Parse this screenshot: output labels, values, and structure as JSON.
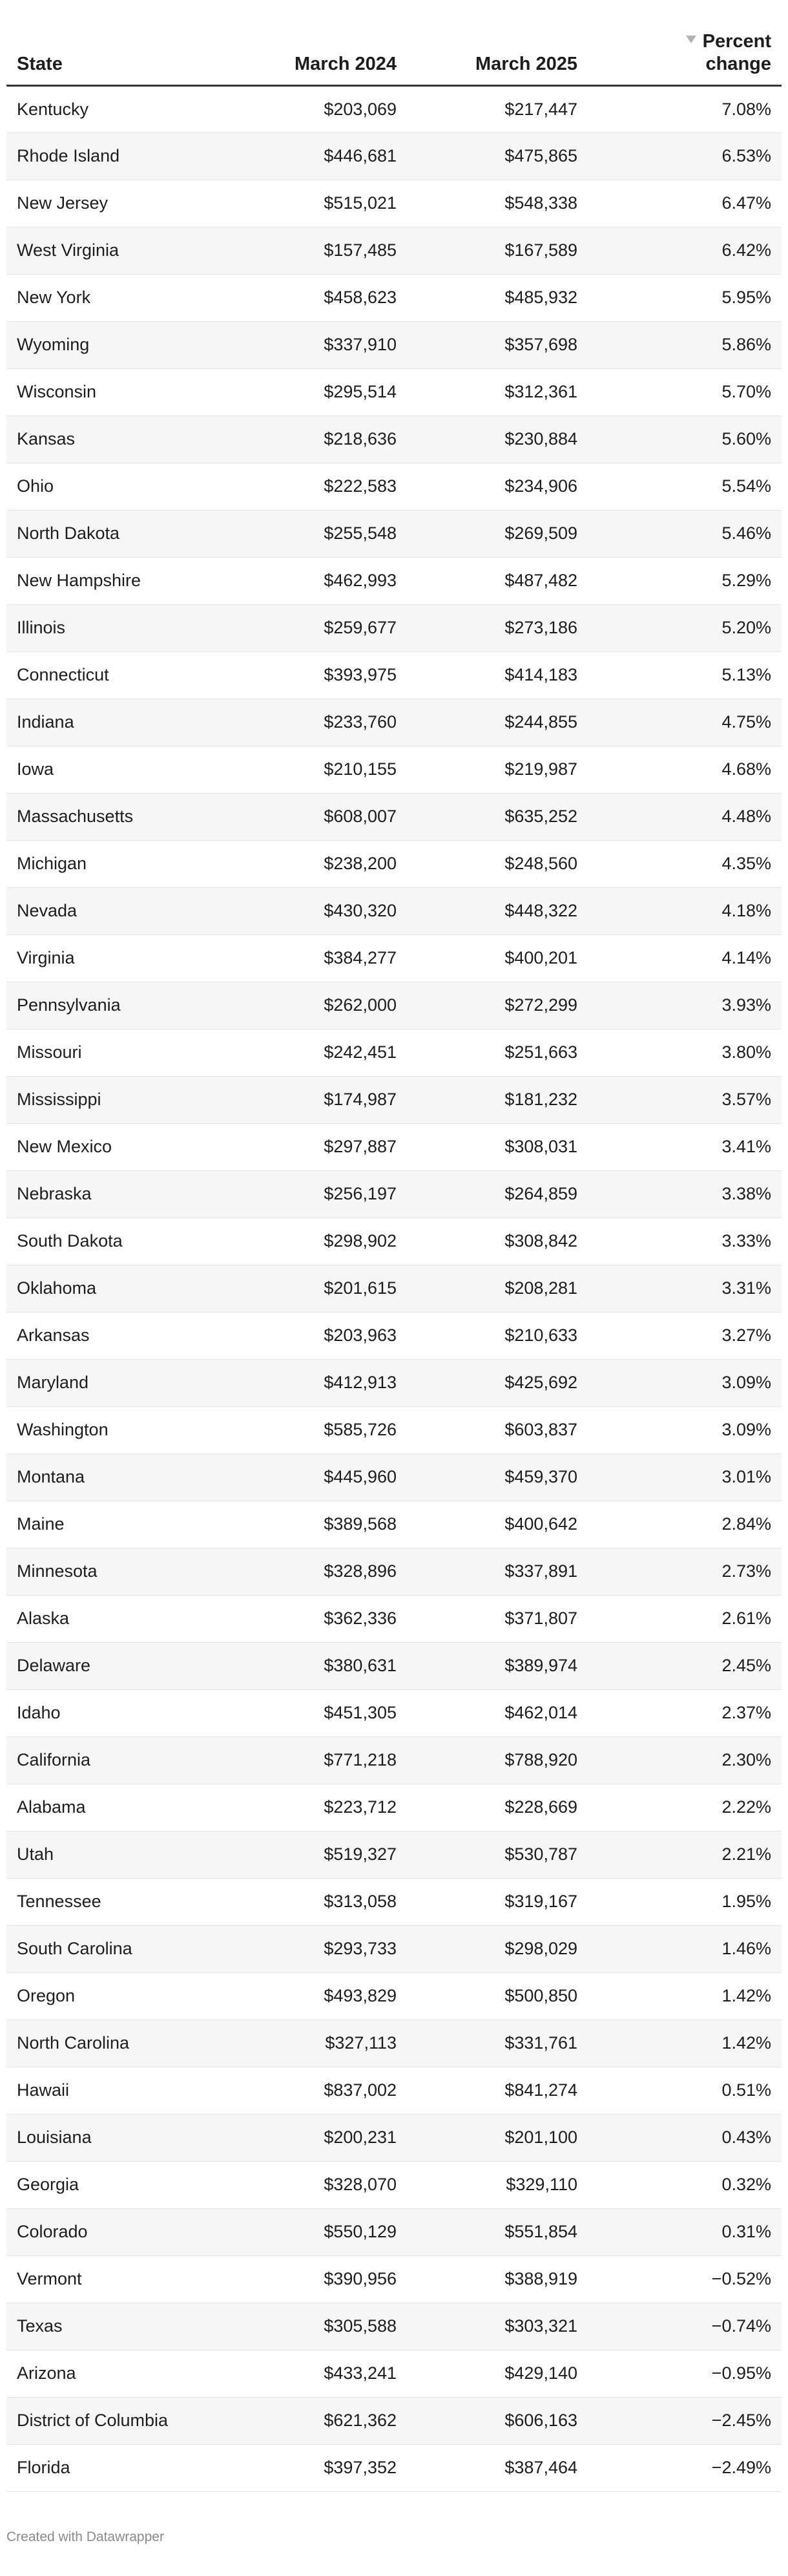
{
  "chart_data": {
    "type": "table",
    "columns": [
      "State",
      "March 2024",
      "March 2025",
      "Percent change"
    ],
    "sorted_by": "Percent change",
    "sort_direction": "descending",
    "rows": [
      [
        "Kentucky",
        "$203,069",
        "$217,447",
        "7.08%"
      ],
      [
        "Rhode Island",
        "$446,681",
        "$475,865",
        "6.53%"
      ],
      [
        "New Jersey",
        "$515,021",
        "$548,338",
        "6.47%"
      ],
      [
        "West Virginia",
        "$157,485",
        "$167,589",
        "6.42%"
      ],
      [
        "New York",
        "$458,623",
        "$485,932",
        "5.95%"
      ],
      [
        "Wyoming",
        "$337,910",
        "$357,698",
        "5.86%"
      ],
      [
        "Wisconsin",
        "$295,514",
        "$312,361",
        "5.70%"
      ],
      [
        "Kansas",
        "$218,636",
        "$230,884",
        "5.60%"
      ],
      [
        "Ohio",
        "$222,583",
        "$234,906",
        "5.54%"
      ],
      [
        "North Dakota",
        "$255,548",
        "$269,509",
        "5.46%"
      ],
      [
        "New Hampshire",
        "$462,993",
        "$487,482",
        "5.29%"
      ],
      [
        "Illinois",
        "$259,677",
        "$273,186",
        "5.20%"
      ],
      [
        "Connecticut",
        "$393,975",
        "$414,183",
        "5.13%"
      ],
      [
        "Indiana",
        "$233,760",
        "$244,855",
        "4.75%"
      ],
      [
        "Iowa",
        "$210,155",
        "$219,987",
        "4.68%"
      ],
      [
        "Massachusetts",
        "$608,007",
        "$635,252",
        "4.48%"
      ],
      [
        "Michigan",
        "$238,200",
        "$248,560",
        "4.35%"
      ],
      [
        "Nevada",
        "$430,320",
        "$448,322",
        "4.18%"
      ],
      [
        "Virginia",
        "$384,277",
        "$400,201",
        "4.14%"
      ],
      [
        "Pennsylvania",
        "$262,000",
        "$272,299",
        "3.93%"
      ],
      [
        "Missouri",
        "$242,451",
        "$251,663",
        "3.80%"
      ],
      [
        "Mississippi",
        "$174,987",
        "$181,232",
        "3.57%"
      ],
      [
        "New Mexico",
        "$297,887",
        "$308,031",
        "3.41%"
      ],
      [
        "Nebraska",
        "$256,197",
        "$264,859",
        "3.38%"
      ],
      [
        "South Dakota",
        "$298,902",
        "$308,842",
        "3.33%"
      ],
      [
        "Oklahoma",
        "$201,615",
        "$208,281",
        "3.31%"
      ],
      [
        "Arkansas",
        "$203,963",
        "$210,633",
        "3.27%"
      ],
      [
        "Maryland",
        "$412,913",
        "$425,692",
        "3.09%"
      ],
      [
        "Washington",
        "$585,726",
        "$603,837",
        "3.09%"
      ],
      [
        "Montana",
        "$445,960",
        "$459,370",
        "3.01%"
      ],
      [
        "Maine",
        "$389,568",
        "$400,642",
        "2.84%"
      ],
      [
        "Minnesota",
        "$328,896",
        "$337,891",
        "2.73%"
      ],
      [
        "Alaska",
        "$362,336",
        "$371,807",
        "2.61%"
      ],
      [
        "Delaware",
        "$380,631",
        "$389,974",
        "2.45%"
      ],
      [
        "Idaho",
        "$451,305",
        "$462,014",
        "2.37%"
      ],
      [
        "California",
        "$771,218",
        "$788,920",
        "2.30%"
      ],
      [
        "Alabama",
        "$223,712",
        "$228,669",
        "2.22%"
      ],
      [
        "Utah",
        "$519,327",
        "$530,787",
        "2.21%"
      ],
      [
        "Tennessee",
        "$313,058",
        "$319,167",
        "1.95%"
      ],
      [
        "South Carolina",
        "$293,733",
        "$298,029",
        "1.46%"
      ],
      [
        "Oregon",
        "$493,829",
        "$500,850",
        "1.42%"
      ],
      [
        "North Carolina",
        "$327,113",
        "$331,761",
        "1.42%"
      ],
      [
        "Hawaii",
        "$837,002",
        "$841,274",
        "0.51%"
      ],
      [
        "Louisiana",
        "$200,231",
        "$201,100",
        "0.43%"
      ],
      [
        "Georgia",
        "$328,070",
        "$329,110",
        "0.32%"
      ],
      [
        "Colorado",
        "$550,129",
        "$551,854",
        "0.31%"
      ],
      [
        "Vermont",
        "$390,956",
        "$388,919",
        "−0.52%"
      ],
      [
        "Texas",
        "$305,588",
        "$303,321",
        "−0.74%"
      ],
      [
        "Arizona",
        "$433,241",
        "$429,140",
        "−0.95%"
      ],
      [
        "District of Columbia",
        "$621,362",
        "$606,163",
        "−2.45%"
      ],
      [
        "Florida",
        "$397,352",
        "$387,464",
        "−2.49%"
      ]
    ]
  },
  "header": {
    "state": "State",
    "march_2024": "March 2024",
    "march_2025": "March 2025",
    "percent_line1": "Percent",
    "percent_line2": "change"
  },
  "footer": {
    "credit": "Created with Datawrapper"
  },
  "colors": {
    "text": "#1d1d1d",
    "zebra": "#f6f6f6",
    "header_rule": "#333333",
    "row_rule": "#e6e6e6",
    "sort_arrow": "#b3b3b3",
    "footer_text": "#8a8a8a"
  }
}
